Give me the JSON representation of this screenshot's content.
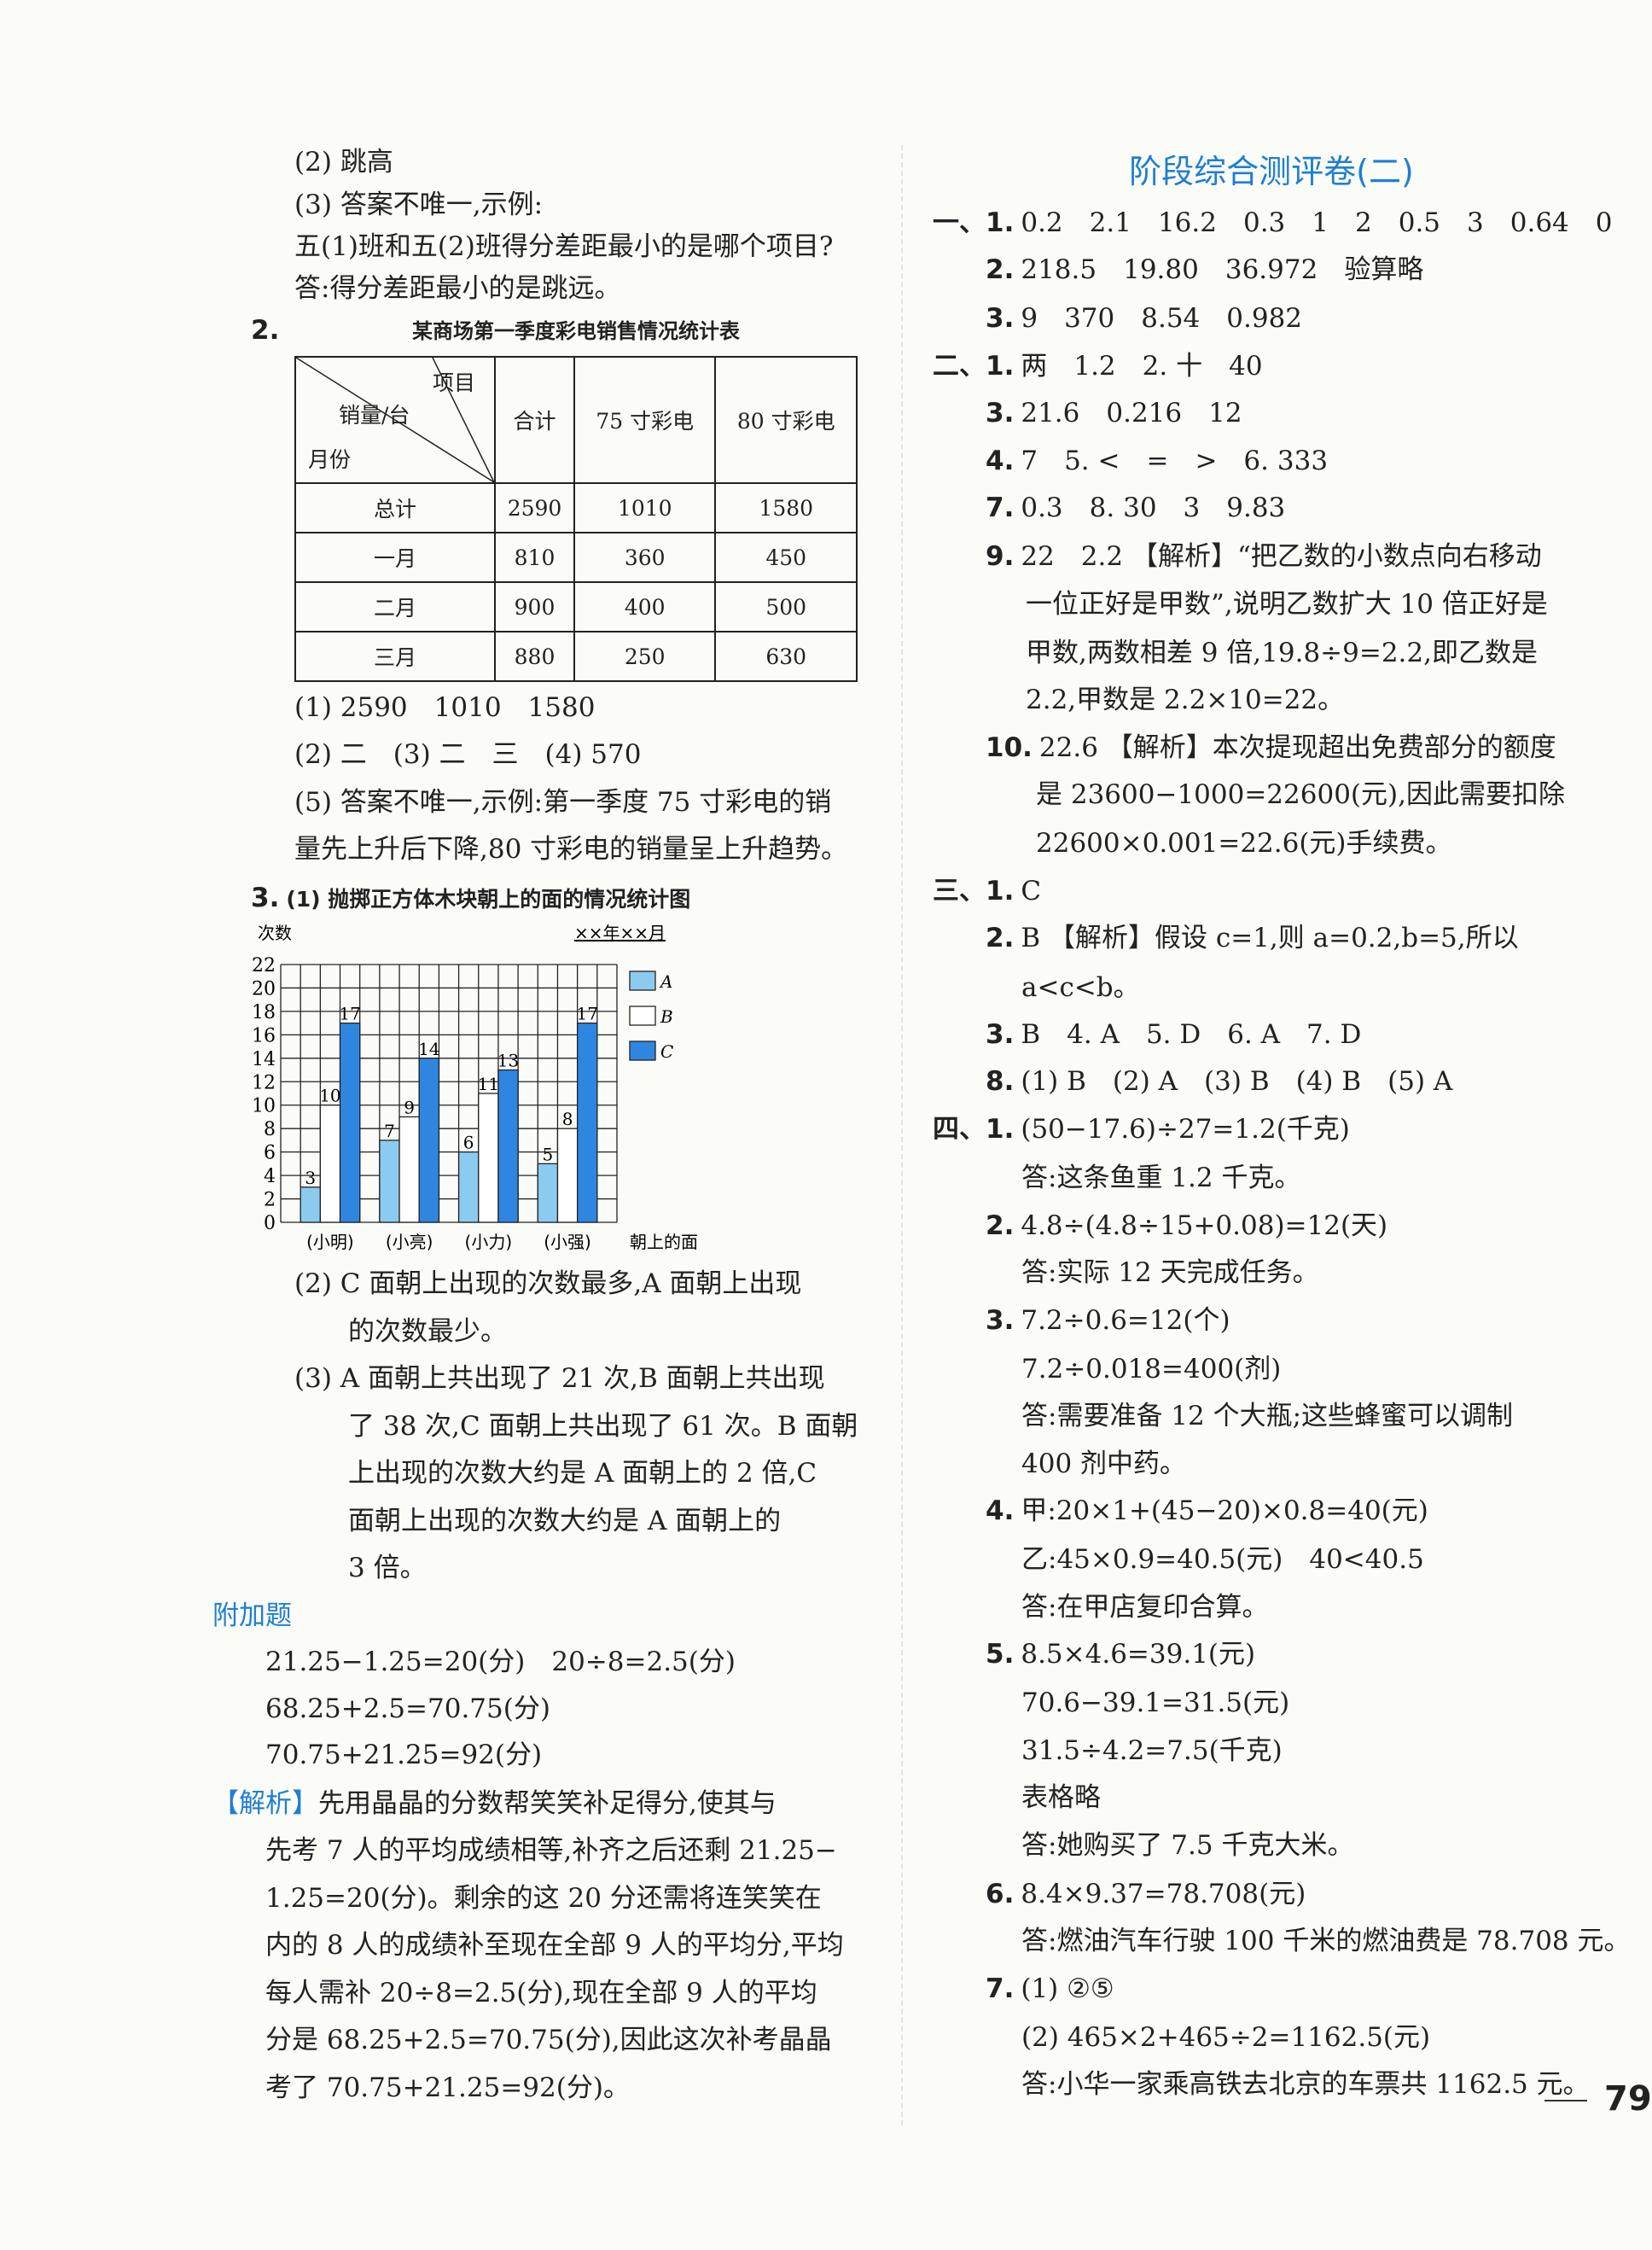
{
  "left": {
    "lines": [
      {
        "n": "",
        "t": "(2) 跳高"
      },
      {
        "n": "",
        "t": "(3) 答案不唯一,示例:"
      },
      {
        "n": "",
        "t": "五(1)班和五(2)班得分差距最小的是哪个项目?"
      },
      {
        "n": "",
        "t": "答:得分差距最小的是跳远。"
      },
      {
        "n": "2.",
        "t": ""
      },
      {
        "n": "",
        "t": "(1) 2590　1010　1580"
      },
      {
        "n": "",
        "t": "(2) 二　(3) 二　三　(4) 570"
      },
      {
        "n": "",
        "t": "(5) 答案不唯一,示例:第一季度 75 寸彩电的销"
      },
      {
        "n": "",
        "t": "量先上升后下降,80 寸彩电的销量呈上升趋势。"
      },
      {
        "n": "3.",
        "t": "(1) 抛掷正方体木块朝上的面的情况统计图"
      },
      {
        "n": "",
        "t": "(2) C 面朝上出现的次数最多,A 面朝上出现"
      },
      {
        "n": "",
        "t": "的次数最少。"
      },
      {
        "n": "",
        "t": "(3) A 面朝上共出现了 21 次,B 面朝上共出现"
      },
      {
        "n": "",
        "t": "了 38 次,C 面朝上共出现了 61 次。B 面朝"
      },
      {
        "n": "",
        "t": "上出现的次数大约是 A 面朝上的 2 倍,C"
      },
      {
        "n": "",
        "t": "面朝上出现的次数大约是 A 面朝上的"
      },
      {
        "n": "",
        "t": "3 倍。"
      },
      {
        "n": "",
        "t": "附加题"
      },
      {
        "n": "",
        "t": "21.25−1.25=20(分)　20÷8=2.5(分)"
      },
      {
        "n": "",
        "t": "68.25+2.5=70.75(分)"
      },
      {
        "n": "",
        "t": "70.75+21.25=92(分)"
      },
      {
        "n": "【解析】",
        "t": "先用晶晶的分数帮笑笑补足得分,使其与"
      },
      {
        "n": "",
        "t": "先考 7 人的平均成绩相等,补齐之后还剩 21.25−"
      },
      {
        "n": "",
        "t": "1.25=20(分)。剩余的这 20 分还需将连笑笑在"
      },
      {
        "n": "",
        "t": "内的 8 人的成绩补至现在全部 9 人的平均分,平均"
      },
      {
        "n": "",
        "t": "每人需补 20÷8=2.5(分),现在全部 9 人的平均"
      },
      {
        "n": "",
        "t": "分是 68.25+2.5=70.75(分),因此这次补考晶晶"
      },
      {
        "n": "",
        "t": "考了 70.75+21.25=92(分)。"
      }
    ]
  },
  "table": {
    "title": "某商场第一季度彩电销售情况统计表",
    "corner": {
      "item": "项目",
      "unit": "销量/台",
      "month": "月份"
    },
    "columns": [
      "合计",
      "75 寸彩电",
      "80 寸彩电"
    ],
    "rows": [
      {
        "label": "总计",
        "values": [
          "2590",
          "1010",
          "1580"
        ]
      },
      {
        "label": "一月",
        "values": [
          "810",
          "360",
          "450"
        ]
      },
      {
        "label": "二月",
        "values": [
          "900",
          "400",
          "500"
        ]
      },
      {
        "label": "三月",
        "values": [
          "880",
          "250",
          "630"
        ]
      }
    ]
  },
  "chart_data": {
    "type": "bar",
    "ylabel": "次数",
    "xlabel": "朝上的面",
    "date_label": "××年××月",
    "categories": [
      "(小明)",
      "(小亮)",
      "(小力)",
      "(小强)"
    ],
    "ylim": [
      0,
      22
    ],
    "yticks": [
      0,
      2,
      4,
      6,
      8,
      10,
      12,
      14,
      16,
      18,
      20,
      22
    ],
    "grid": true,
    "legend": "right",
    "series": [
      {
        "name": "A",
        "values": [
          3,
          7,
          6,
          5
        ],
        "color": "#8ccbf0"
      },
      {
        "name": "B",
        "values": [
          10,
          9,
          11,
          8
        ],
        "color": "#ffffff"
      },
      {
        "name": "C",
        "values": [
          17,
          14,
          13,
          17
        ],
        "color": "#2f86e0"
      }
    ]
  },
  "right": {
    "title": "阶段综合测评卷(二)",
    "lines": [
      {
        "n": "一、1.",
        "t": "0.2　2.1　16.2　0.3　1　2　0.5　3　0.64　0"
      },
      {
        "n": "2.",
        "t": "218.5　19.80　36.972　验算略"
      },
      {
        "n": "3.",
        "t": "9　370　8.54　0.982"
      },
      {
        "n": "二、1.",
        "t": "两　1.2　2. 十　40"
      },
      {
        "n": "3.",
        "t": "21.6　0.216　12"
      },
      {
        "n": "4.",
        "t": "7　5. <　=　>　6. 333"
      },
      {
        "n": "7.",
        "t": "0.3　8. 30　3　9.83"
      },
      {
        "n": "9.",
        "t": "22　2.2 【解析】“把乙数的小数点向右移动"
      },
      {
        "n": "",
        "t": "一位正好是甲数”,说明乙数扩大 10 倍正好是"
      },
      {
        "n": "",
        "t": "甲数,两数相差 9 倍,19.8÷9=2.2,即乙数是"
      },
      {
        "n": "",
        "t": "2.2,甲数是 2.2×10=22。"
      },
      {
        "n": "10.",
        "t": "22.6 【解析】本次提现超出免费部分的额度"
      },
      {
        "n": "",
        "t": "是 23600−1000=22600(元),因此需要扣除"
      },
      {
        "n": "",
        "t": "22600×0.001=22.6(元)手续费。"
      },
      {
        "n": "三、1.",
        "t": "C"
      },
      {
        "n": "2.",
        "t": "B 【解析】假设 c=1,则 a=0.2,b=5,所以"
      },
      {
        "n": "",
        "t": "a<c<b。"
      },
      {
        "n": "3.",
        "t": "B　4. A　5. D　6. A　7. D"
      },
      {
        "n": "8.",
        "t": "(1) B　(2) A　(3) B　(4) B　(5) A"
      },
      {
        "n": "四、1.",
        "t": "(50−17.6)÷27=1.2(千克)"
      },
      {
        "n": "",
        "t": "答:这条鱼重 1.2 千克。"
      },
      {
        "n": "2.",
        "t": "4.8÷(4.8÷15+0.08)=12(天)"
      },
      {
        "n": "",
        "t": "答:实际 12 天完成任务。"
      },
      {
        "n": "3.",
        "t": "7.2÷0.6=12(个)"
      },
      {
        "n": "",
        "t": "7.2÷0.018=400(剂)"
      },
      {
        "n": "",
        "t": "答:需要准备 12 个大瓶;这些蜂蜜可以调制"
      },
      {
        "n": "",
        "t": "400 剂中药。"
      },
      {
        "n": "4.",
        "t": "甲:20×1+(45−20)×0.8=40(元)"
      },
      {
        "n": "",
        "t": "乙:45×0.9=40.5(元)　40<40.5"
      },
      {
        "n": "",
        "t": "答:在甲店复印合算。"
      },
      {
        "n": "5.",
        "t": "8.5×4.6=39.1(元)"
      },
      {
        "n": "",
        "t": "70.6−39.1=31.5(元)"
      },
      {
        "n": "",
        "t": "31.5÷4.2=7.5(千克)"
      },
      {
        "n": "",
        "t": "表格略"
      },
      {
        "n": "",
        "t": "答:她购买了 7.5 千克大米。"
      },
      {
        "n": "6.",
        "t": "8.4×9.37=78.708(元)"
      },
      {
        "n": "",
        "t": "答:燃油汽车行驶 100 千米的燃油费是 78.708 元。"
      },
      {
        "n": "7.",
        "t": "(1) ②⑤"
      },
      {
        "n": "",
        "t": "(2) 465×2+465÷2=1162.5(元)"
      },
      {
        "n": "",
        "t": "答:小华一家乘高铁去北京的车票共 1162.5 元。"
      }
    ]
  },
  "page_number": "79",
  "colors": {
    "accent": "#1f7fd0"
  }
}
